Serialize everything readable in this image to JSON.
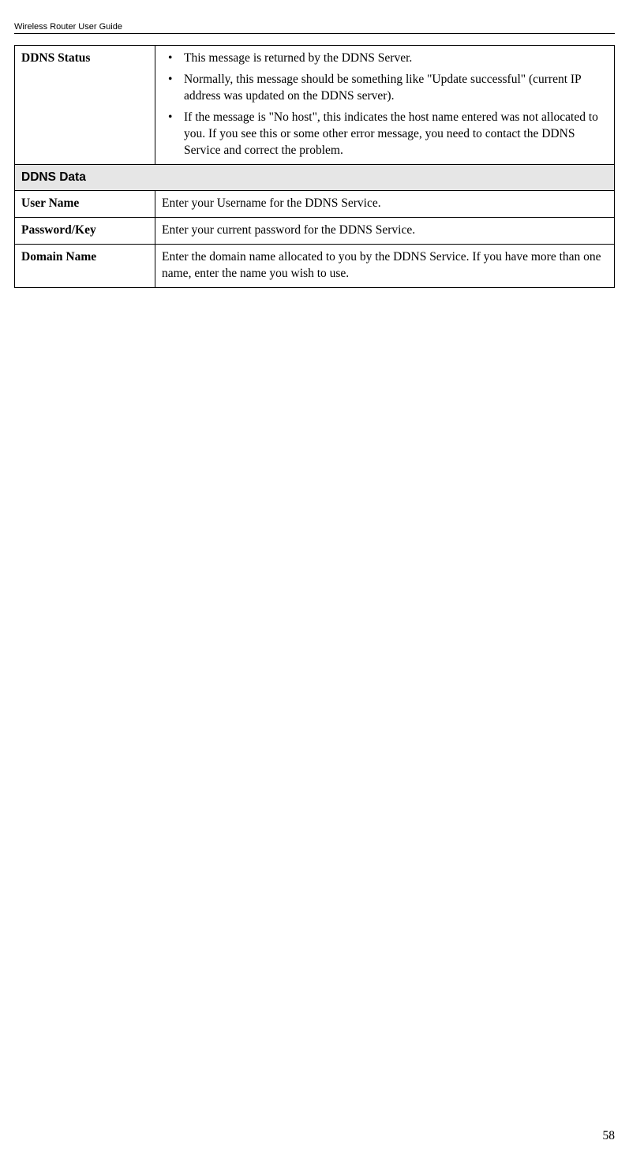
{
  "header": "Wireless Router User Guide",
  "pageNumber": "58",
  "table": {
    "rows": [
      {
        "type": "data",
        "label": "DDNS Status",
        "bullets": [
          "This message is returned by the DDNS Server.",
          "Normally, this message should be something like \"Update successful\" (current IP address was updated on the DDNS server).",
          "If the message is \"No host\", this indicates the host name entered was not allocated to you. If you see this or some other error message, you need to contact the DDNS Service and correct the problem."
        ]
      },
      {
        "type": "section",
        "text": "DDNS Data"
      },
      {
        "type": "data",
        "label": "User Name",
        "text": "Enter your Username for the DDNS Service."
      },
      {
        "type": "data",
        "label": "Password/Key",
        "text": "Enter your current password for the DDNS Service."
      },
      {
        "type": "data",
        "label": "Domain Name",
        "text": "Enter the domain name allocated to you by the DDNS Service. If you have more than one name, enter the name you wish to use."
      }
    ]
  }
}
